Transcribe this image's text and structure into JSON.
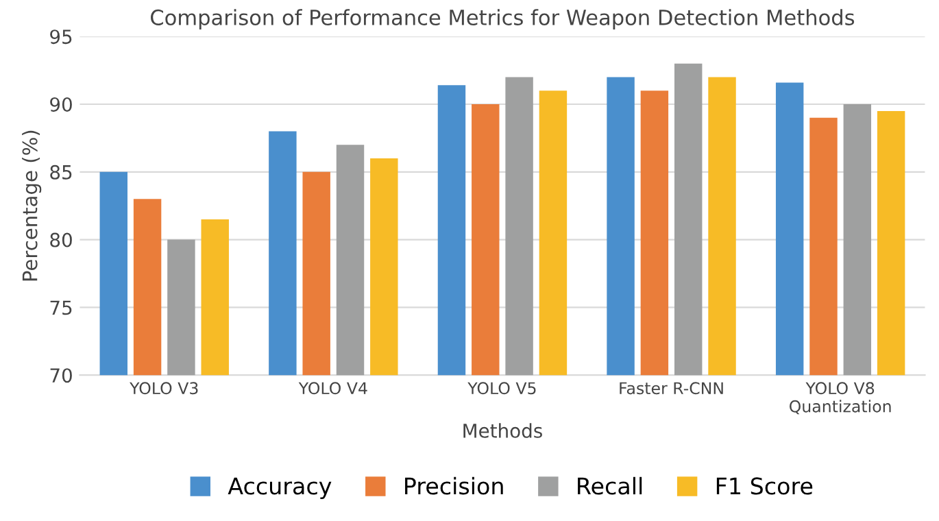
{
  "chart_data": {
    "type": "bar",
    "title": "Comparison of Performance Metrics for Weapon Detection Methods",
    "xlabel": "Methods",
    "ylabel": "Percentage (%)",
    "categories": [
      "YOLO V3",
      "YOLO V4",
      "YOLO V5",
      "Faster R-CNN",
      "YOLO V8\nQuantization"
    ],
    "series": [
      {
        "name": "Accuracy",
        "color": "#4a8fcd",
        "values": [
          85,
          88,
          91.4,
          92,
          91.6
        ]
      },
      {
        "name": "Precision",
        "color": "#ea7d3a",
        "values": [
          83,
          85,
          90,
          91,
          89
        ]
      },
      {
        "name": "Recall",
        "color": "#9fa0a0",
        "values": [
          80,
          87,
          92,
          93,
          90
        ]
      },
      {
        "name": "F1 Score",
        "color": "#f7bb26",
        "values": [
          81.5,
          86,
          91,
          92,
          89.5
        ]
      }
    ],
    "ylim": [
      70,
      95
    ],
    "yticks": [
      70,
      75,
      80,
      85,
      90,
      95
    ],
    "grid": "y",
    "legend": "bottom"
  }
}
